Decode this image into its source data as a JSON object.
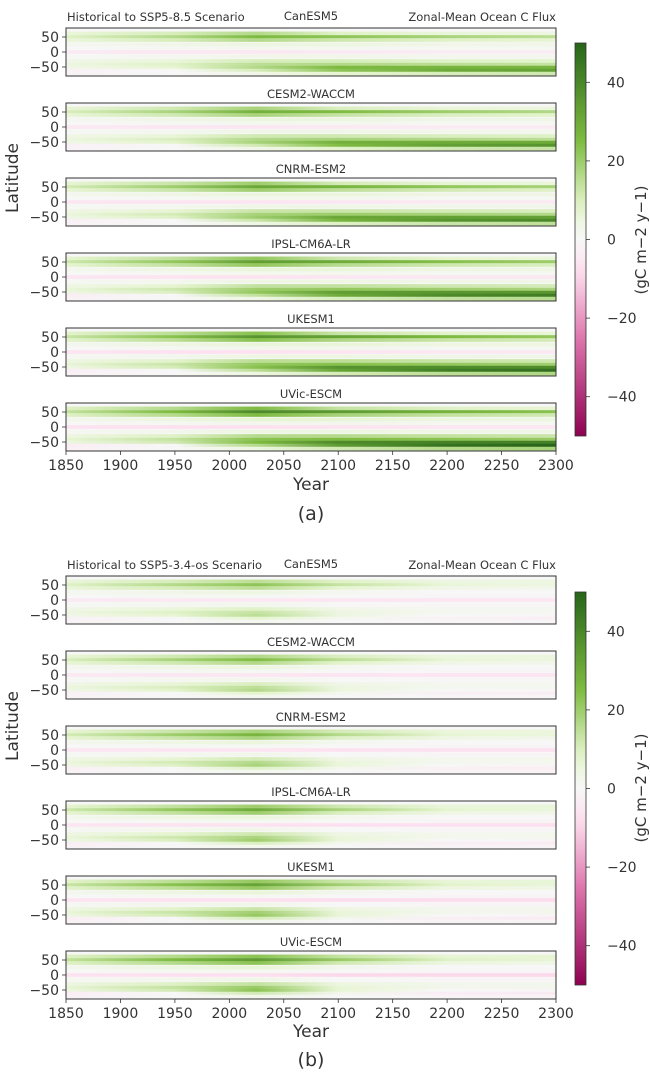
{
  "figure": {
    "colors": {
      "neg_strong": "#8e0152",
      "neg_mid": "#de77ae",
      "neg_light": "#fde0ef",
      "zero": "#f7f7f7",
      "pos_light": "#e6f5d0",
      "pos_mid": "#7fbc41",
      "pos_strong": "#276419",
      "frame": "#333333"
    }
  },
  "chart_data": [
    {
      "type": "heatmap",
      "panel_label": "(a)",
      "scenario_label": "Historical to SSP5-8.5 Scenario",
      "variable_label": "Zonal-Mean Ocean C Flux",
      "xlabel": "Year",
      "ylabel": "Latitude",
      "xlim": [
        1850,
        2300
      ],
      "xticks": [
        "1850",
        "1900",
        "1950",
        "2000",
        "2050",
        "2100",
        "2150",
        "2200",
        "2250",
        "2300"
      ],
      "ylim": [
        -80,
        80
      ],
      "yticks": [
        "50",
        "0",
        "−50"
      ],
      "colorbar": {
        "label": "(gC m−2 y−1)",
        "range": [
          -50,
          50
        ],
        "ticks": [
          "40",
          "20",
          "0",
          "−20",
          "−40"
        ]
      },
      "models": [
        "CanESM5",
        "CESM2-WACCM",
        "CNRM-ESM2",
        "IPSL-CM6A-LR",
        "UKESM1",
        "UVic-ESCM"
      ],
      "bands": [
        {
          "lat": 62,
          "values": [
            8,
            14,
            22,
            12,
            8,
            6
          ]
        },
        {
          "lat": 50,
          "values": [
            12,
            22,
            34,
            30,
            24,
            20
          ]
        },
        {
          "lat": 40,
          "values": [
            8,
            14,
            22,
            16,
            12,
            10
          ]
        },
        {
          "lat": 25,
          "values": [
            2,
            4,
            6,
            6,
            4,
            4
          ]
        },
        {
          "lat": 12,
          "values": [
            0,
            1,
            2,
            2,
            1,
            1
          ]
        },
        {
          "lat": 0,
          "values": [
            -6,
            -7,
            -7,
            -6,
            -5,
            -5
          ]
        },
        {
          "lat": -15,
          "values": [
            1,
            2,
            4,
            4,
            3,
            3
          ]
        },
        {
          "lat": -30,
          "values": [
            4,
            8,
            14,
            14,
            12,
            11
          ]
        },
        {
          "lat": -42,
          "values": [
            6,
            12,
            20,
            22,
            20,
            18
          ]
        },
        {
          "lat": -52,
          "values": [
            4,
            10,
            22,
            34,
            36,
            36
          ]
        },
        {
          "lat": -62,
          "values": [
            -3,
            0,
            14,
            30,
            40,
            44
          ]
        },
        {
          "lat": -72,
          "values": [
            -2,
            0,
            4,
            10,
            14,
            16
          ]
        }
      ],
      "band_years": [
        1850,
        1950,
        2025,
        2100,
        2200,
        2300
      ]
    },
    {
      "type": "heatmap",
      "panel_label": "(b)",
      "scenario_label": "Historical to SSP5-3.4-os Scenario",
      "variable_label": "Zonal-Mean Ocean C Flux",
      "xlabel": "Year",
      "ylabel": "Latitude",
      "xlim": [
        1850,
        2300
      ],
      "xticks": [
        "1850",
        "1900",
        "1950",
        "2000",
        "2050",
        "2100",
        "2150",
        "2200",
        "2250",
        "2300"
      ],
      "ylim": [
        -80,
        80
      ],
      "yticks": [
        "50",
        "0",
        "−50"
      ],
      "colorbar": {
        "label": "(gC m−2 y−1)",
        "range": [
          -50,
          50
        ],
        "ticks": [
          "40",
          "20",
          "0",
          "−20",
          "−40"
        ]
      },
      "models": [
        "CanESM5",
        "CESM2-WACCM",
        "CNRM-ESM2",
        "IPSL-CM6A-LR",
        "UKESM1",
        "UVic-ESCM"
      ],
      "bands": [
        {
          "lat": 62,
          "values": [
            8,
            14,
            20,
            12,
            6,
            6
          ]
        },
        {
          "lat": 50,
          "values": [
            12,
            22,
            30,
            18,
            8,
            6
          ]
        },
        {
          "lat": 40,
          "values": [
            8,
            14,
            20,
            10,
            4,
            3
          ]
        },
        {
          "lat": 25,
          "values": [
            2,
            4,
            6,
            2,
            0,
            0
          ]
        },
        {
          "lat": 12,
          "values": [
            0,
            1,
            1,
            0,
            -1,
            -1
          ]
        },
        {
          "lat": 0,
          "values": [
            -6,
            -7,
            -7,
            -8,
            -8,
            -8
          ]
        },
        {
          "lat": -15,
          "values": [
            1,
            2,
            3,
            0,
            -1,
            -1
          ]
        },
        {
          "lat": -30,
          "values": [
            4,
            8,
            12,
            4,
            2,
            2
          ]
        },
        {
          "lat": -42,
          "values": [
            6,
            12,
            18,
            6,
            2,
            2
          ]
        },
        {
          "lat": -52,
          "values": [
            4,
            10,
            20,
            6,
            0,
            -1
          ]
        },
        {
          "lat": -62,
          "values": [
            -3,
            0,
            10,
            2,
            -3,
            -4
          ]
        },
        {
          "lat": -72,
          "values": [
            -2,
            0,
            2,
            0,
            -1,
            -1
          ]
        }
      ],
      "band_years": [
        1850,
        1950,
        2025,
        2100,
        2200,
        2300
      ]
    }
  ]
}
